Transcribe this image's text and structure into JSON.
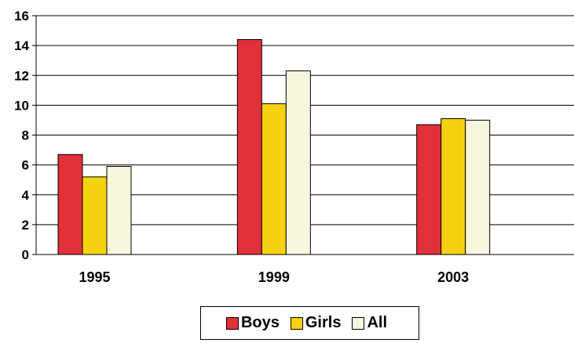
{
  "chart_data": {
    "type": "bar",
    "categories": [
      "1995",
      "1999",
      "2003"
    ],
    "series": [
      {
        "name": "Boys",
        "color": "#e0303a",
        "values": [
          6.7,
          14.4,
          8.7
        ]
      },
      {
        "name": "Girls",
        "color": "#f5d20f",
        "values": [
          5.2,
          10.1,
          9.1
        ]
      },
      {
        "name": "All",
        "color": "#f8f6dc",
        "values": [
          5.9,
          12.3,
          9.0
        ]
      }
    ],
    "y_ticks": [
      "0",
      "2",
      "4",
      "6",
      "8",
      "10",
      "12",
      "14",
      "16"
    ],
    "ylim": [
      0,
      16
    ],
    "grid": true,
    "legend_position": "bottom"
  }
}
